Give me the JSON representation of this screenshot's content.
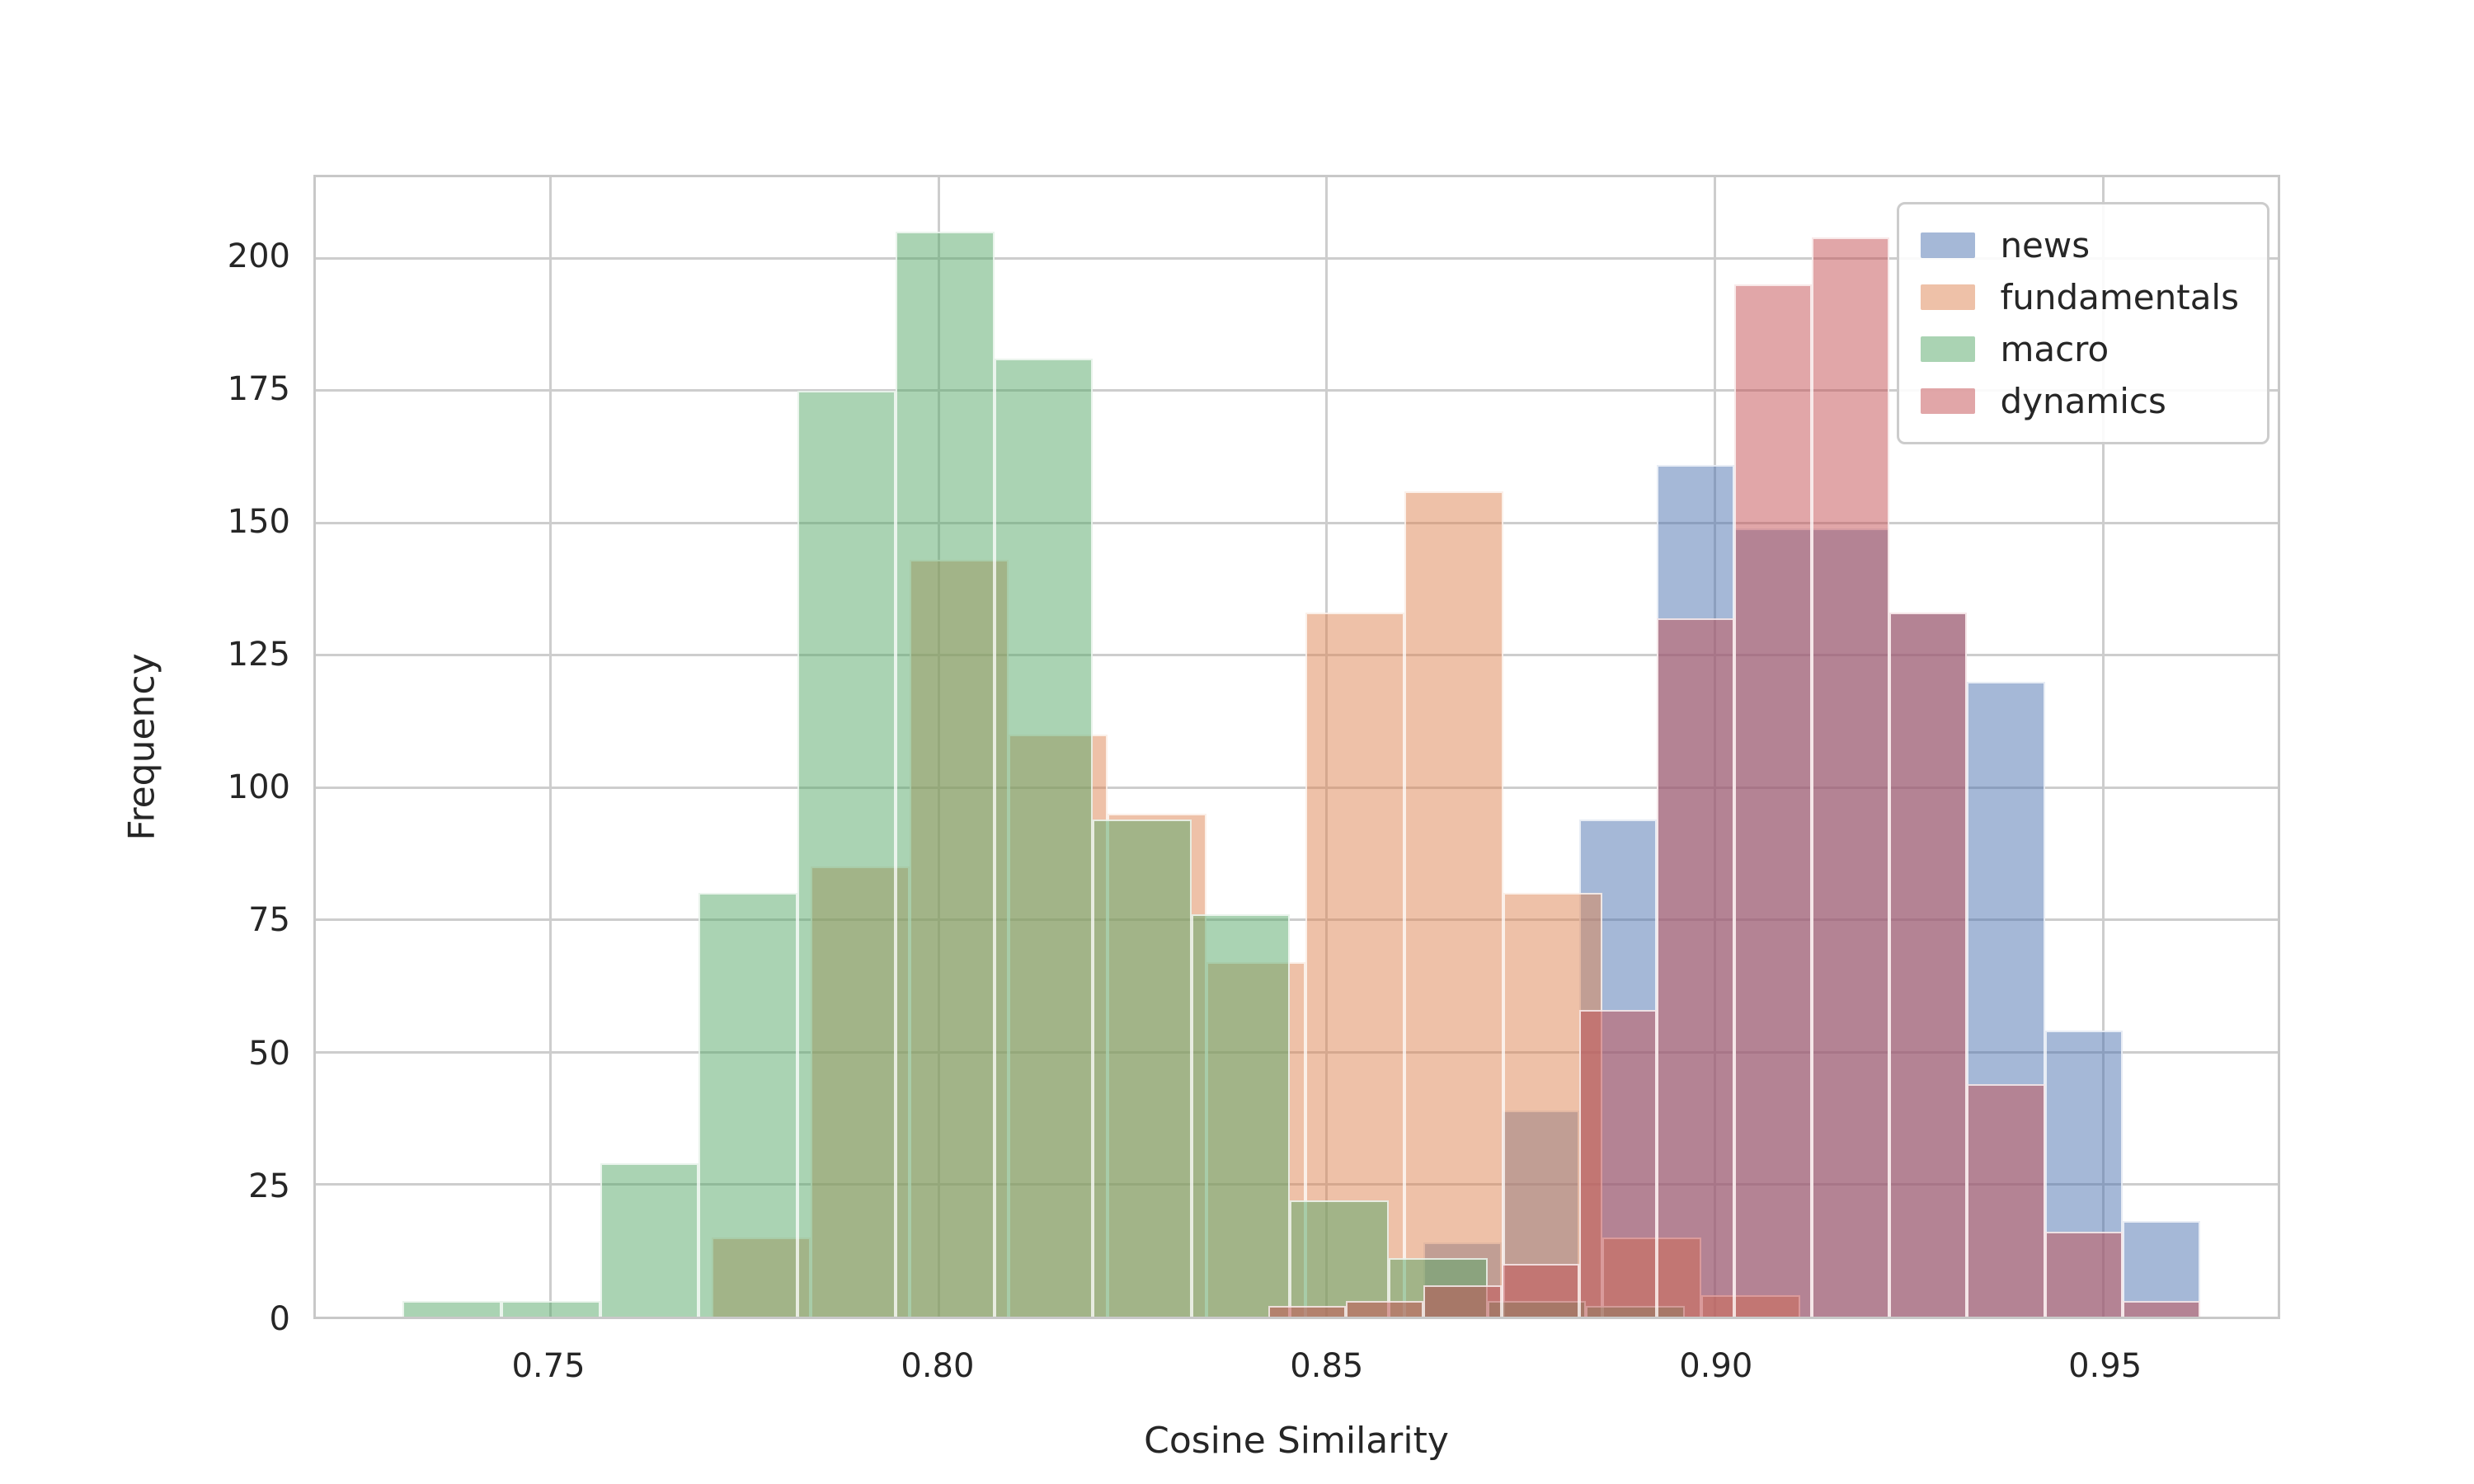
{
  "chart_data": {
    "type": "bar",
    "subtype": "overlaid-histograms",
    "title": "",
    "xlabel": "Cosine Similarity",
    "ylabel": "Frequency",
    "xlim": [
      0.7198,
      0.9725
    ],
    "ylim": [
      0,
      215.3
    ],
    "x_ticks": [
      0.75,
      0.8,
      0.85,
      0.9,
      0.95
    ],
    "x_tick_labels": [
      "0.75",
      "0.80",
      "0.85",
      "0.90",
      "0.95"
    ],
    "y_ticks": [
      0,
      25,
      50,
      75,
      100,
      125,
      150,
      175,
      200
    ],
    "y_tick_labels": [
      "0",
      "25",
      "50",
      "75",
      "100",
      "125",
      "150",
      "175",
      "200"
    ],
    "grid": true,
    "legend_position": "upper right",
    "legend": [
      "news",
      "fundamentals",
      "macro",
      "dynamics"
    ],
    "series": [
      {
        "name": "news",
        "color": "#4C72B0",
        "alpha": 0.5,
        "bin_start": 0.8625,
        "bin_width": 0.01,
        "counts": [
          14,
          39,
          94,
          161,
          149,
          149,
          133,
          120,
          54,
          18
        ]
      },
      {
        "name": "fundamentals",
        "color": "#DD8452",
        "alpha": 0.5,
        "bin_start": 0.7708,
        "bin_width": 0.01275,
        "counts": [
          15,
          85,
          143,
          110,
          95,
          67,
          133,
          156,
          80,
          15,
          4
        ]
      },
      {
        "name": "macro",
        "color": "#55A868",
        "alpha": 0.5,
        "bin_start": 0.731,
        "bin_width": 0.0127,
        "counts": [
          3,
          3,
          29,
          80,
          175,
          205,
          181,
          94,
          76,
          22,
          11,
          3,
          2
        ]
      },
      {
        "name": "dynamics",
        "color": "#C44E52",
        "alpha": 0.5,
        "bin_start": 0.8425,
        "bin_width": 0.01,
        "counts": [
          2,
          3,
          6,
          10,
          58,
          132,
          195,
          204,
          133,
          44,
          16,
          3
        ]
      }
    ]
  }
}
